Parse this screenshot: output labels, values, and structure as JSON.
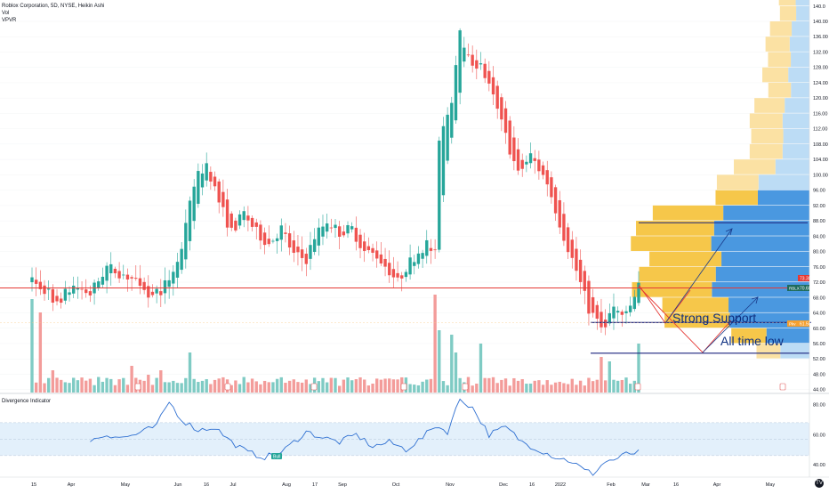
{
  "header": {
    "title": "Roblox Corporation, 5D, NYSE, Heikin Ashi",
    "vol_label": "Vol",
    "vpvr_label": "VPVR"
  },
  "indicator": {
    "title": "Divergence Indicator",
    "bull_label": "Bull"
  },
  "annotations": {
    "strong_support": "Strong Support",
    "all_time_low": "All time low"
  },
  "price_tags": {
    "red": "73.30",
    "dark": "70.60",
    "dark_prefix": "RBLX",
    "orange": "61.50",
    "orange_prefix": "Pkv"
  },
  "logo": "TV",
  "colors": {
    "up": "#26a69a",
    "down": "#ef5350",
    "vol_up": "#7fcbc4",
    "vol_down": "#f39c9a",
    "hline_red": "#e53935",
    "hline_navy": "#1a237e",
    "vpvr_up_dark": "#4a98e0",
    "vpvr_up_light": "#bcdcf5",
    "vpvr_down_dark": "#f6c74a",
    "vpvr_down_light": "#fbe1a3",
    "indicator_line": "#2e6fd1",
    "indicator_band": "#e3f0fb"
  },
  "chart_data": {
    "type": "candlestick",
    "y_ticks": [
      44,
      48,
      52,
      56,
      60,
      64,
      68,
      72,
      76,
      80,
      84,
      88,
      92,
      96,
      100,
      104,
      108,
      112,
      116,
      120,
      124,
      128,
      132,
      136,
      140
    ],
    "y_top_label": "140.0",
    "ylim": [
      44,
      142
    ],
    "x_ticks": [
      "15",
      "Apr",
      "May",
      "Jun",
      "16",
      "Jul",
      "Aug",
      "17",
      "Sep",
      "Oct",
      "Nov",
      "Dec",
      "16",
      "2022",
      "Feb",
      "Mar",
      "16",
      "Apr",
      "May"
    ],
    "horizontal_levels": [
      {
        "value": 70.5,
        "color": "red"
      },
      {
        "value": 87.5,
        "color": "navy"
      },
      {
        "value": 61.5,
        "color": "navy"
      },
      {
        "value": 53.5,
        "color": "navy"
      }
    ],
    "anchors": [
      [
        0,
        72
      ],
      [
        3,
        70
      ],
      [
        6,
        67
      ],
      [
        10,
        71
      ],
      [
        14,
        69
      ],
      [
        18,
        76
      ],
      [
        22,
        74
      ],
      [
        26,
        72
      ],
      [
        29,
        68
      ],
      [
        32,
        71
      ],
      [
        36,
        80
      ],
      [
        39,
        98
      ],
      [
        42,
        103
      ],
      [
        45,
        93
      ],
      [
        48,
        85
      ],
      [
        51,
        90
      ],
      [
        54,
        85
      ],
      [
        57,
        82
      ],
      [
        60,
        86
      ],
      [
        63,
        79
      ],
      [
        66,
        78
      ],
      [
        68,
        84
      ],
      [
        71,
        88
      ],
      [
        74,
        85
      ],
      [
        77,
        86
      ],
      [
        80,
        80
      ],
      [
        83,
        79
      ],
      [
        86,
        75
      ],
      [
        88,
        72
      ],
      [
        90,
        76
      ],
      [
        93,
        80
      ],
      [
        95,
        82
      ],
      [
        97,
        79
      ],
      [
        98,
        108
      ],
      [
        101,
        120
      ],
      [
        103,
        139
      ],
      [
        105,
        130
      ],
      [
        108,
        128
      ],
      [
        111,
        120
      ],
      [
        114,
        110
      ],
      [
        117,
        100
      ],
      [
        120,
        105
      ],
      [
        124,
        98
      ],
      [
        128,
        84
      ],
      [
        131,
        75
      ],
      [
        134,
        65
      ],
      [
        137,
        60
      ],
      [
        140,
        65
      ],
      [
        143,
        63
      ],
      [
        146,
        71
      ]
    ],
    "volume_spikes": {
      "0": 21,
      "2": 18,
      "5": 5,
      "24": 6,
      "28": 4,
      "31": 5,
      "38": 9,
      "97": 22,
      "98": 14,
      "101": 13,
      "102": 9,
      "108": 11,
      "137": 8,
      "139": 7,
      "146": 11
    },
    "volume_default": [
      1.5,
      3.5
    ],
    "indicator": {
      "ylim": [
        34,
        84
      ],
      "y_ticks": [
        40,
        60,
        80
      ],
      "band": [
        46,
        68
      ],
      "anchors": [
        [
          14,
          56
        ],
        [
          18,
          60
        ],
        [
          22,
          58
        ],
        [
          26,
          61
        ],
        [
          30,
          66
        ],
        [
          33,
          82
        ],
        [
          36,
          70
        ],
        [
          40,
          63
        ],
        [
          44,
          65
        ],
        [
          48,
          55
        ],
        [
          52,
          48
        ],
        [
          56,
          45
        ],
        [
          60,
          48
        ],
        [
          63,
          55
        ],
        [
          66,
          62
        ],
        [
          70,
          58
        ],
        [
          74,
          55
        ],
        [
          78,
          60
        ],
        [
          82,
          52
        ],
        [
          86,
          55
        ],
        [
          90,
          50
        ],
        [
          94,
          58
        ],
        [
          97,
          66
        ],
        [
          100,
          62
        ],
        [
          103,
          84
        ],
        [
          106,
          78
        ],
        [
          110,
          60
        ],
        [
          114,
          65
        ],
        [
          118,
          55
        ],
        [
          122,
          50
        ],
        [
          126,
          45
        ],
        [
          130,
          42
        ],
        [
          133,
          36
        ],
        [
          135,
          34
        ],
        [
          138,
          42
        ],
        [
          141,
          44
        ],
        [
          143,
          47
        ],
        [
          146,
          48
        ]
      ]
    }
  }
}
